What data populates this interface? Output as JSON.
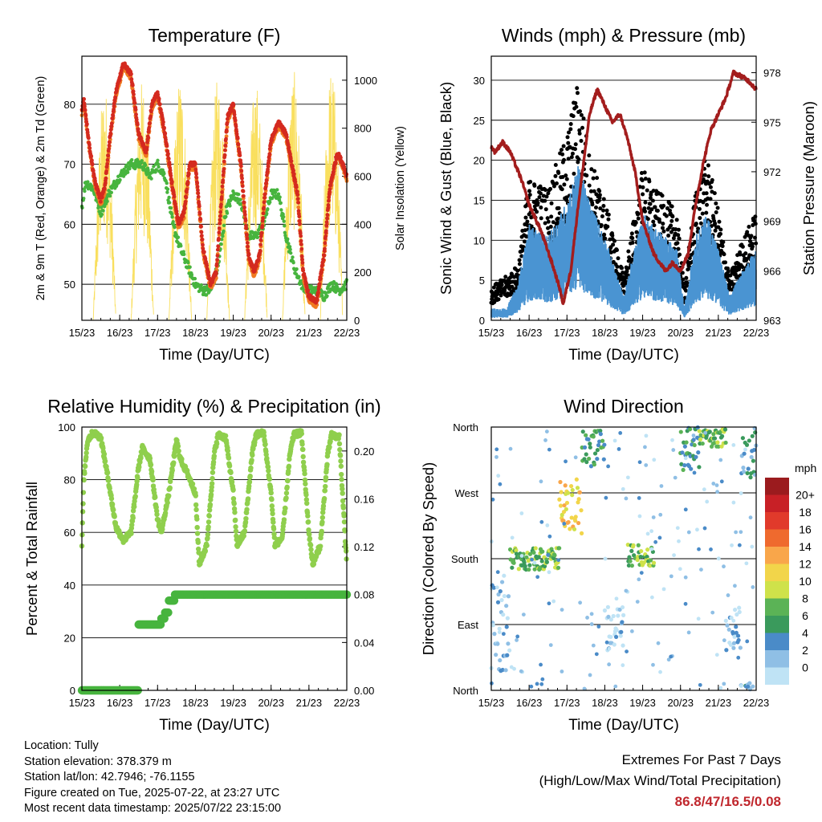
{
  "footer": {
    "location": "Location: Tully",
    "elevation": "Station elevation: 378.379 m",
    "latlon": "Station lat/lon: 42.7946; -76.1155",
    "created": "Figure created on Tue, 2025-07-22, at 23:27 UTC",
    "recent": "Most recent data timestamp: 2025/07/22 23:15:00",
    "extremes_title": "Extremes For Past 7 Days",
    "extremes_sub": "(High/Low/Max Wind/Total Precipitation)",
    "extremes_values": "86.8/47/16.5/0.08"
  },
  "x_ticks": [
    "15/23",
    "16/23",
    "17/23",
    "18/23",
    "19/23",
    "20/23",
    "21/23",
    "22/23"
  ],
  "chart_data": [
    {
      "type": "line",
      "title": "Temperature (F)",
      "xlabel": "Time (Day/UTC)",
      "ylabel": "2m & 9m T (Red, Orange) & 2m Td (Green)",
      "y2label": "Solar Insolation (Yellow)",
      "ylim": [
        44,
        88
      ],
      "y2lim": [
        0,
        1100
      ],
      "yticks": [
        50,
        60,
        70,
        80
      ],
      "y2ticks": [
        0,
        200,
        400,
        600,
        800,
        1000
      ],
      "colors": {
        "t2m": "#d42a1f",
        "t9m": "#f07a22",
        "td": "#47b43e",
        "solar": "#f9df5e"
      },
      "series": [
        {
          "key": "t2m",
          "x": [
            0,
            0.05,
            0.2,
            0.35,
            0.5,
            0.6,
            0.75,
            0.9,
            1.1,
            1.3,
            1.5,
            1.7,
            1.85,
            2.0,
            2.2,
            2.4,
            2.55,
            2.7,
            2.85,
            3.0,
            3.2,
            3.4,
            3.55,
            3.7,
            3.85,
            4.0,
            4.2,
            4.4,
            4.55,
            4.7,
            4.85,
            5.0,
            5.2,
            5.4,
            5.55,
            5.7,
            5.85,
            6.0,
            6.2,
            6.4,
            6.55,
            6.75,
            6.9,
            7.0
          ],
          "values": [
            79,
            81,
            73,
            67,
            64,
            66,
            75,
            82,
            86.8,
            85,
            75,
            72,
            80,
            82,
            75,
            66,
            60,
            62,
            70,
            70,
            56,
            50,
            52,
            65,
            78,
            80,
            70,
            55,
            52,
            55,
            66,
            74,
            77,
            75,
            70,
            65,
            52,
            48,
            47,
            55,
            66,
            72,
            70,
            68
          ]
        },
        {
          "key": "td",
          "x": [
            0,
            0.1,
            0.3,
            0.5,
            0.7,
            1.0,
            1.3,
            1.6,
            1.8,
            2.0,
            2.2,
            2.4,
            2.6,
            2.8,
            3.0,
            3.2,
            3.4,
            3.6,
            3.8,
            4.0,
            4.2,
            4.4,
            4.6,
            4.8,
            5.0,
            5.2,
            5.4,
            5.6,
            5.8,
            6.0,
            6.2,
            6.4,
            6.6,
            6.8,
            7.0
          ],
          "values": [
            63,
            67,
            66,
            62,
            65,
            68,
            70,
            70,
            68,
            70,
            68,
            60,
            56,
            53,
            50,
            49,
            49,
            53,
            62,
            65,
            64,
            58,
            58,
            60,
            65,
            65,
            58,
            53,
            50,
            49,
            49,
            48,
            50,
            49,
            50
          ]
        },
        {
          "key": "solar",
          "peaks_day": [
            0.6,
            1.6,
            2.6,
            3.6,
            4.6,
            5.6,
            6.6
          ],
          "peak_values": [
            980,
            1010,
            1020,
            1020,
            1000,
            1040,
            1060
          ]
        }
      ]
    },
    {
      "type": "scatter",
      "title": "Winds (mph) & Pressure (mb)",
      "xlabel": "Time (Day/UTC)",
      "ylabel": "Sonic Wind & Gust (Blue, Black)",
      "y2label": "Station Pressure (Maroon)",
      "ylim": [
        0,
        33
      ],
      "y2lim": [
        963,
        979
      ],
      "yticks": [
        0,
        5,
        10,
        15,
        20,
        25,
        30
      ],
      "y2ticks": [
        963,
        966,
        969,
        972,
        975,
        978
      ],
      "colors": {
        "wind": "#4a94d2",
        "gust": "#000000",
        "pressure": "#a31d1d"
      },
      "series": [
        {
          "key": "wind_mean",
          "x": [
            0,
            0.4,
            0.7,
            1.0,
            1.5,
            2.0,
            2.3,
            2.6,
            3.0,
            3.5,
            4.0,
            4.3,
            4.6,
            4.9,
            5.1,
            5.4,
            5.7,
            6.0,
            6.3,
            6.6,
            7.0
          ],
          "values": [
            1,
            1,
            3,
            8,
            7,
            10,
            13,
            10,
            7,
            2,
            9,
            8,
            7,
            6,
            1,
            7,
            9,
            6,
            2,
            4,
            6
          ]
        },
        {
          "key": "gust_mean",
          "x": [
            0,
            0.4,
            0.7,
            1.0,
            1.5,
            2.0,
            2.3,
            2.6,
            3.0,
            3.5,
            4.0,
            4.3,
            4.6,
            4.9,
            5.1,
            5.4,
            5.7,
            6.0,
            6.3,
            6.6,
            7.0
          ],
          "values": [
            3,
            4,
            5,
            13,
            12,
            17,
            22,
            15,
            11,
            4,
            14,
            12,
            11,
            10,
            3,
            12,
            15,
            10,
            4,
            7,
            10
          ]
        },
        {
          "key": "pressure",
          "x": [
            0,
            0.1,
            0.3,
            0.5,
            0.8,
            1.0,
            1.3,
            1.6,
            1.8,
            1.9,
            2.1,
            2.3,
            2.6,
            2.8,
            3.0,
            3.2,
            3.4,
            3.6,
            3.8,
            4.0,
            4.3,
            4.6,
            4.8,
            5.0,
            5.2,
            5.4,
            5.6,
            5.8,
            6.0,
            6.2,
            6.4,
            6.6,
            6.8,
            7.0
          ],
          "values": [
            973.5,
            973.2,
            973.8,
            973.2,
            971.5,
            970,
            968.5,
            966.5,
            965,
            964,
            966,
            970,
            975.5,
            977,
            976,
            975,
            975.5,
            974,
            972,
            969,
            967,
            966,
            966.5,
            966,
            967,
            970,
            972.5,
            974.5,
            975.5,
            976.5,
            978,
            977.8,
            977.5,
            977
          ]
        }
      ]
    },
    {
      "type": "line",
      "title": "Relative Humidity (%) & Precipitation (in)",
      "xlabel": "Time (Day/UTC)",
      "ylabel": "Percent & Total Rainfall",
      "ylim": [
        0,
        100
      ],
      "y2lim": [
        0,
        0.22
      ],
      "yticks": [
        0,
        20,
        40,
        60,
        80,
        100
      ],
      "y2ticks": [
        0.0,
        0.04,
        0.08,
        0.12,
        0.16,
        0.2
      ],
      "colors": {
        "rh": "#8fcf4d",
        "precip": "#47b43e"
      },
      "series": [
        {
          "key": "rh",
          "x": [
            0,
            0.05,
            0.15,
            0.3,
            0.5,
            0.7,
            0.9,
            1.1,
            1.3,
            1.5,
            1.6,
            1.8,
            2.0,
            2.1,
            2.3,
            2.5,
            2.6,
            2.8,
            3.0,
            3.1,
            3.3,
            3.5,
            3.6,
            3.8,
            4.0,
            4.1,
            4.3,
            4.5,
            4.6,
            4.8,
            5.0,
            5.1,
            5.3,
            5.5,
            5.6,
            5.8,
            6.0,
            6.1,
            6.3,
            6.5,
            6.6,
            6.8,
            7.0
          ],
          "values": [
            55,
            80,
            95,
            98,
            96,
            80,
            62,
            57,
            60,
            85,
            92,
            88,
            65,
            60,
            75,
            95,
            88,
            82,
            75,
            48,
            55,
            90,
            97,
            96,
            75,
            55,
            60,
            90,
            97,
            98,
            75,
            55,
            58,
            90,
            97,
            98,
            60,
            48,
            55,
            90,
            97,
            96,
            48
          ]
        },
        {
          "key": "precip",
          "x": [
            0,
            1.5,
            1.5,
            2.1,
            2.1,
            2.2,
            2.2,
            2.3,
            2.3,
            2.45,
            2.45,
            7.0
          ],
          "values": [
            0,
            0,
            0.055,
            0.055,
            0.06,
            0.06,
            0.065,
            0.065,
            0.075,
            0.075,
            0.08,
            0.08
          ]
        }
      ]
    },
    {
      "type": "scatter",
      "title": "Wind Direction",
      "xlabel": "Time (Day/UTC)",
      "ylabel": "Direction (Colored By Speed)",
      "ylim": [
        0,
        360
      ],
      "ytick_labels": [
        "North",
        "East",
        "South",
        "West",
        "North"
      ],
      "colorbar_title": "mph",
      "colorbar_labels": [
        "20+",
        "18",
        "16",
        "14",
        "12",
        "10",
        "8",
        "6",
        "4",
        "2",
        "0"
      ],
      "colorbar_colors": [
        "#9b1b1e",
        "#c82026",
        "#e13a2b",
        "#ef6a2e",
        "#f9a64a",
        "#f2d54a",
        "#cfe24a",
        "#5bb356",
        "#3a9a5c",
        "#4a8bc8",
        "#8fbfe5",
        "#bfe3f5"
      ],
      "series": [
        {
          "key": "direction_bands",
          "bands": [
            {
              "x": [
                0,
                0.5
              ],
              "deg_center": 90,
              "deg_spread": 70,
              "speed": 2
            },
            {
              "x": [
                0.5,
                1.8
              ],
              "deg_center": 180,
              "deg_spread": 15,
              "speed": 9
            },
            {
              "x": [
                1.8,
                2.4
              ],
              "deg_center": 250,
              "deg_spread": 40,
              "speed": 13
            },
            {
              "x": [
                2.4,
                3.0
              ],
              "deg_center": 330,
              "deg_spread": 25,
              "speed": 7
            },
            {
              "x": [
                3.0,
                3.5
              ],
              "deg_center": 85,
              "deg_spread": 30,
              "speed": 2
            },
            {
              "x": [
                3.6,
                4.3
              ],
              "deg_center": 185,
              "deg_spread": 15,
              "speed": 9
            },
            {
              "x": [
                5.0,
                5.5
              ],
              "deg_center": 330,
              "deg_spread": 30,
              "speed": 7
            },
            {
              "x": [
                5.5,
                6.2
              ],
              "deg_center": 345,
              "deg_spread": 12,
              "speed": 9
            },
            {
              "x": [
                6.2,
                6.6
              ],
              "deg_center": 80,
              "deg_spread": 35,
              "speed": 3
            },
            {
              "x": [
                6.6,
                7.0
              ],
              "deg_center": 330,
              "deg_spread": 40,
              "speed": 5
            }
          ]
        }
      ]
    }
  ]
}
